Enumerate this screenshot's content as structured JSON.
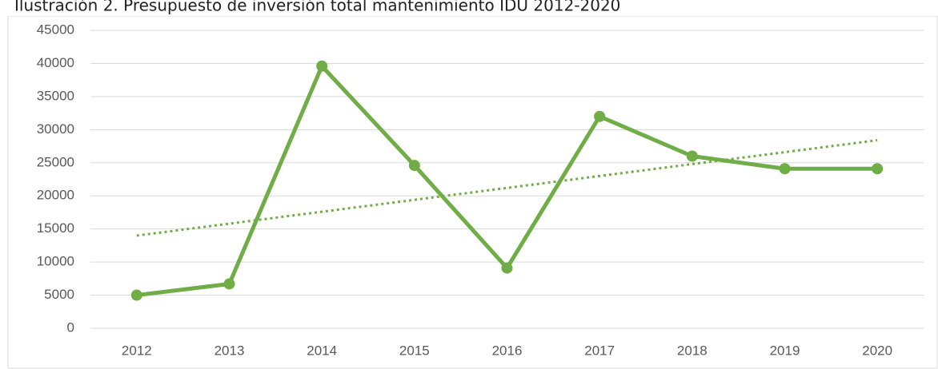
{
  "chart_data": {
    "type": "line",
    "title": "Ilustración 2. Presupuesto de inversión total mantenimiento IDU 2012-2020",
    "categories": [
      "2012",
      "2013",
      "2014",
      "2015",
      "2016",
      "2017",
      "2018",
      "2019",
      "2020"
    ],
    "series": [
      {
        "color": "#70ad47",
        "values": [
          5000,
          6700,
          39600,
          24600,
          9100,
          32000,
          26000,
          24100,
          24100
        ]
      }
    ],
    "trendline": {
      "color": "#70ad47",
      "values": [
        14000,
        28400
      ]
    },
    "ylim": [
      0,
      45000
    ],
    "yticks": [
      0,
      5000,
      10000,
      15000,
      20000,
      25000,
      30000,
      35000,
      40000,
      45000
    ],
    "grid": true
  }
}
